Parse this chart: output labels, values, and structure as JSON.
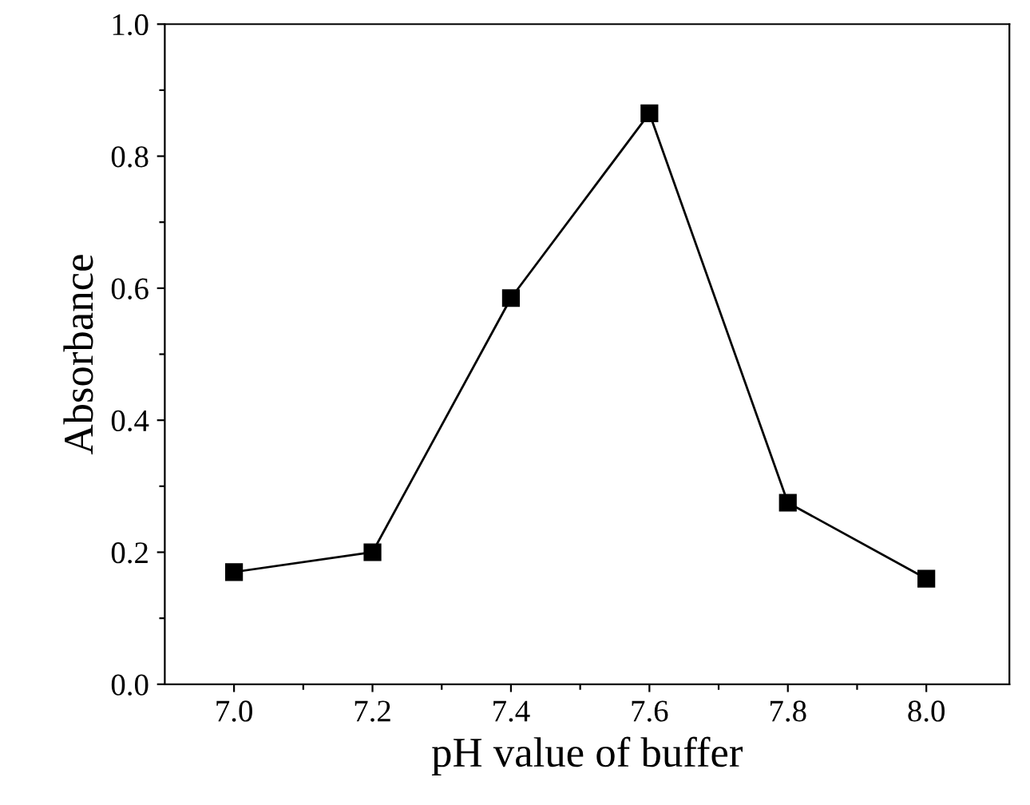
{
  "chart_data": {
    "type": "line",
    "xlabel": "pH value of buffer",
    "ylabel": "Absorbance",
    "x": [
      7.0,
      7.2,
      7.4,
      7.6,
      7.8,
      8.0
    ],
    "series": [
      {
        "color": "#000000",
        "values": [
          0.17,
          0.2,
          0.585,
          0.865,
          0.275,
          0.16
        ]
      }
    ],
    "xlim": [
      6.9,
      8.12
    ],
    "ylim": [
      0.0,
      1.0
    ],
    "xticks": [
      {
        "value": 7.0,
        "label": "7.0"
      },
      {
        "value": 7.1,
        "label": null
      },
      {
        "value": 7.2,
        "label": "7.2"
      },
      {
        "value": 7.3,
        "label": null
      },
      {
        "value": 7.4,
        "label": "7.4"
      },
      {
        "value": 7.5,
        "label": null
      },
      {
        "value": 7.6,
        "label": "7.6"
      },
      {
        "value": 7.7,
        "label": null
      },
      {
        "value": 7.8,
        "label": "7.8"
      },
      {
        "value": 7.9,
        "label": null
      },
      {
        "value": 8.0,
        "label": "8.0"
      }
    ],
    "yticks": [
      {
        "value": 0.0,
        "label": "0.0"
      },
      {
        "value": 0.1,
        "label": null
      },
      {
        "value": 0.2,
        "label": "0.2"
      },
      {
        "value": 0.3,
        "label": null
      },
      {
        "value": 0.4,
        "label": "0.4"
      },
      {
        "value": 0.5,
        "label": null
      },
      {
        "value": 0.6,
        "label": "0.6"
      },
      {
        "value": 0.7,
        "label": null
      },
      {
        "value": 0.8,
        "label": "0.8"
      },
      {
        "value": 0.9,
        "label": null
      },
      {
        "value": 1.0,
        "label": "1.0"
      }
    ],
    "marker": "square",
    "line_style": "solid",
    "grid": false,
    "legend": false
  }
}
